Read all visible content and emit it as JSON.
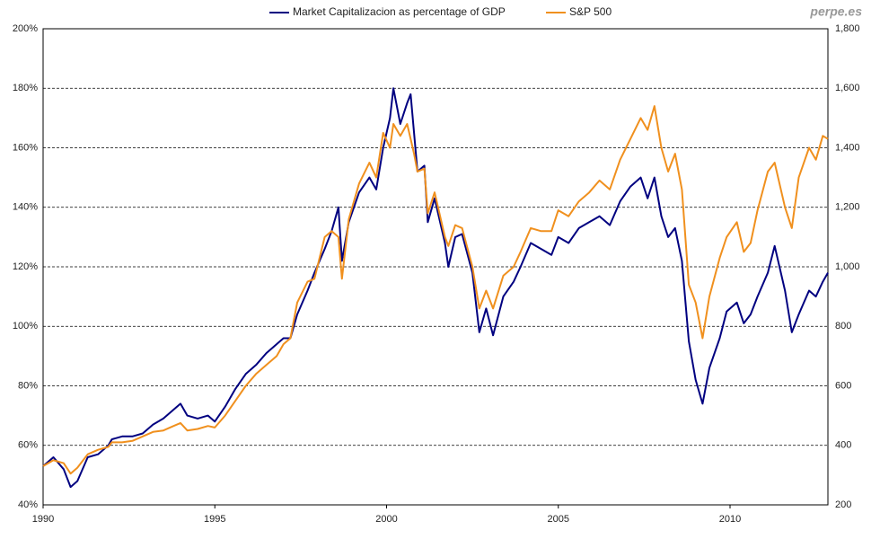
{
  "chart_data": {
    "type": "line",
    "watermark": "perpe.es",
    "x": [
      1990.0,
      1990.3,
      1990.6,
      1990.8,
      1991.0,
      1991.3,
      1991.6,
      1991.9,
      1992.0,
      1992.3,
      1992.6,
      1992.9,
      1993.2,
      1993.5,
      1993.8,
      1994.0,
      1994.2,
      1994.5,
      1994.8,
      1995.0,
      1995.3,
      1995.6,
      1995.9,
      1996.2,
      1996.5,
      1996.8,
      1997.0,
      1997.2,
      1997.4,
      1997.7,
      1997.9,
      1998.2,
      1998.4,
      1998.6,
      1998.7,
      1998.9,
      1999.2,
      1999.5,
      1999.7,
      1999.9,
      2000.1,
      2000.2,
      2000.4,
      2000.6,
      2000.7,
      2000.8,
      2000.9,
      2001.1,
      2001.2,
      2001.4,
      2001.7,
      2001.8,
      2002.0,
      2002.2,
      2002.5,
      2002.7,
      2002.9,
      2003.1,
      2003.4,
      2003.7,
      2003.9,
      2004.2,
      2004.5,
      2004.8,
      2005.0,
      2005.3,
      2005.6,
      2005.9,
      2006.2,
      2006.5,
      2006.8,
      2007.1,
      2007.4,
      2007.6,
      2007.8,
      2008.0,
      2008.2,
      2008.4,
      2008.6,
      2008.8,
      2009.0,
      2009.2,
      2009.4,
      2009.7,
      2009.9,
      2010.2,
      2010.4,
      2010.6,
      2010.8,
      2011.1,
      2011.3,
      2011.6,
      2011.8,
      2012.0,
      2012.3,
      2012.5,
      2012.7,
      2012.85
    ],
    "series": [
      {
        "name": "Market Capitalizacion as percentage of GDP",
        "color": "#000080",
        "axis": "y",
        "values": [
          53,
          56,
          52,
          46,
          48,
          56,
          57,
          60,
          62,
          63,
          63,
          64,
          67,
          69,
          72,
          74,
          70,
          69,
          70,
          68,
          73,
          79,
          84,
          87,
          91,
          94,
          96,
          96,
          104,
          112,
          118,
          126,
          132,
          140,
          122,
          135,
          145,
          150,
          146,
          160,
          170,
          180,
          168,
          175,
          178,
          165,
          152,
          154,
          135,
          143,
          128,
          120,
          130,
          131,
          118,
          98,
          106,
          97,
          110,
          115,
          120,
          128,
          126,
          124,
          130,
          128,
          133,
          135,
          137,
          134,
          142,
          147,
          150,
          143,
          150,
          137,
          130,
          133,
          122,
          95,
          82,
          74,
          86,
          96,
          105,
          108,
          101,
          104,
          110,
          118,
          127,
          112,
          98,
          104,
          112,
          110,
          115,
          118
        ]
      },
      {
        "name": "S&P 500",
        "color": "#f0901e",
        "axis": "y2",
        "values": [
          330,
          350,
          340,
          305,
          325,
          370,
          385,
          395,
          410,
          410,
          415,
          430,
          445,
          450,
          465,
          475,
          450,
          455,
          465,
          460,
          500,
          550,
          600,
          640,
          670,
          700,
          740,
          760,
          880,
          950,
          960,
          1100,
          1120,
          1100,
          960,
          1160,
          1280,
          1350,
          1300,
          1450,
          1400,
          1480,
          1440,
          1480,
          1430,
          1380,
          1320,
          1330,
          1180,
          1250,
          1100,
          1070,
          1140,
          1130,
          1000,
          860,
          920,
          860,
          970,
          1000,
          1050,
          1130,
          1120,
          1120,
          1190,
          1170,
          1220,
          1250,
          1290,
          1260,
          1360,
          1430,
          1500,
          1460,
          1540,
          1400,
          1320,
          1380,
          1260,
          940,
          880,
          760,
          900,
          1030,
          1100,
          1150,
          1050,
          1080,
          1190,
          1320,
          1350,
          1200,
          1130,
          1300,
          1400,
          1360,
          1440,
          1430
        ]
      }
    ],
    "xlim": [
      1990,
      2012.85
    ],
    "xticks": [
      1990,
      1995,
      2000,
      2005,
      2010
    ],
    "ylim": [
      40,
      200
    ],
    "yticks": [
      {
        "value": 40,
        "label": "40%"
      },
      {
        "value": 60,
        "label": "60%"
      },
      {
        "value": 80,
        "label": "80%"
      },
      {
        "value": 100,
        "label": "100%"
      },
      {
        "value": 120,
        "label": "120%"
      },
      {
        "value": 140,
        "label": "140%"
      },
      {
        "value": 160,
        "label": "160%"
      },
      {
        "value": 180,
        "label": "180%"
      },
      {
        "value": 200,
        "label": "200%"
      }
    ],
    "y2lim": [
      200,
      1800
    ],
    "y2ticks": [
      200,
      400,
      600,
      800,
      {
        "value": 1000,
        "label": "1,000"
      },
      {
        "value": 1200,
        "label": "1,200"
      },
      {
        "value": 1400,
        "label": "1,400"
      },
      {
        "value": 1600,
        "label": "1,600"
      },
      {
        "value": 1800,
        "label": "1,800"
      }
    ],
    "grid": true,
    "legend": "top"
  }
}
